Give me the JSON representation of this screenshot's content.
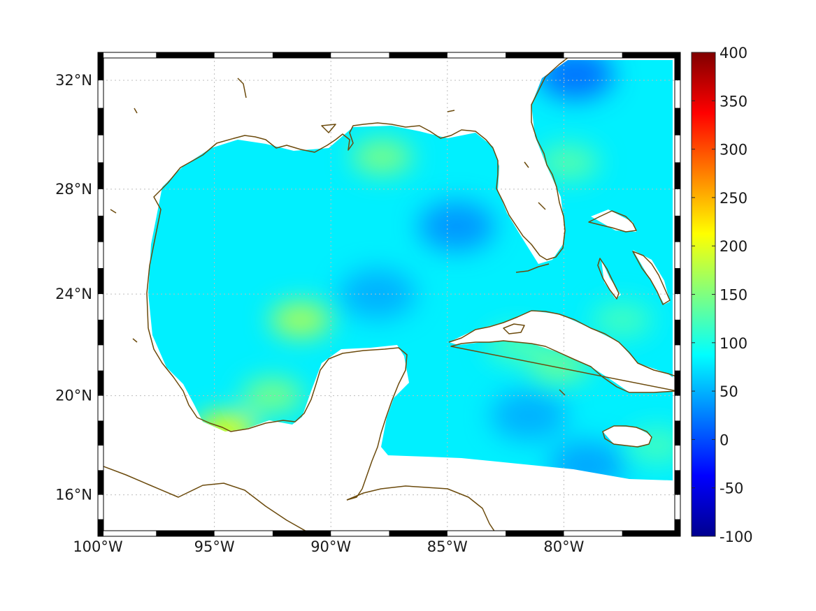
{
  "map": {
    "projection": "mercator",
    "lon_range": [
      -100,
      -75
    ],
    "lat_range": [
      14.3,
      33
    ],
    "grid": true,
    "lon_ticks": [
      {
        "value": -100,
        "label": "100°W"
      },
      {
        "value": -95,
        "label": "95°W"
      },
      {
        "value": -90,
        "label": "90°W"
      },
      {
        "value": -85,
        "label": "85°W"
      },
      {
        "value": -80,
        "label": "80°W"
      }
    ],
    "lat_ticks": [
      {
        "value": 16,
        "label": "16°N"
      },
      {
        "value": 20,
        "label": "20°N"
      },
      {
        "value": 24,
        "label": "24°N"
      },
      {
        "value": 28,
        "label": "28°N"
      },
      {
        "value": 32,
        "label": "32°N"
      }
    ],
    "coastline_color": "#6b4a0c",
    "colormap": "jet"
  },
  "colorbar": {
    "min": -100,
    "max": 400,
    "ticks": [
      {
        "value": 400,
        "label": "400"
      },
      {
        "value": 350,
        "label": "350"
      },
      {
        "value": 300,
        "label": "300"
      },
      {
        "value": 250,
        "label": "250"
      },
      {
        "value": 200,
        "label": "200"
      },
      {
        "value": 150,
        "label": "150"
      },
      {
        "value": 100,
        "label": "100"
      },
      {
        "value": 50,
        "label": "50"
      },
      {
        "value": 0,
        "label": "0"
      },
      {
        "value": -50,
        "label": "-50"
      },
      {
        "value": -100,
        "label": "-100"
      }
    ]
  },
  "chart_data": {
    "type": "heatmap",
    "field": "ocean field over Gulf of Mexico and NW Caribbean",
    "background_value": 80,
    "hotspots": [
      {
        "lon": -94.5,
        "lat": 18.6,
        "value": 210
      },
      {
        "lon": -91.3,
        "lat": 23.0,
        "value": 175
      },
      {
        "lon": -92.5,
        "lat": 20.0,
        "value": 150
      },
      {
        "lon": -87.8,
        "lat": 29.2,
        "value": 150
      },
      {
        "lon": -79.8,
        "lat": 29.0,
        "value": 130
      },
      {
        "lon": -80.2,
        "lat": 21.2,
        "value": 140
      },
      {
        "lon": -82.0,
        "lat": 22.0,
        "value": 125
      },
      {
        "lon": -77.5,
        "lat": 23.0,
        "value": 120
      },
      {
        "lon": -76.0,
        "lat": 18.0,
        "value": 120
      }
    ],
    "coldspots": [
      {
        "lon": -79.5,
        "lat": 32.2,
        "value": 10
      },
      {
        "lon": -84.6,
        "lat": 26.6,
        "value": 30
      },
      {
        "lon": -88.0,
        "lat": 24.0,
        "value": 45
      },
      {
        "lon": -81.5,
        "lat": 19.2,
        "value": 45
      },
      {
        "lon": -79.0,
        "lat": 17.2,
        "value": 40
      }
    ]
  }
}
